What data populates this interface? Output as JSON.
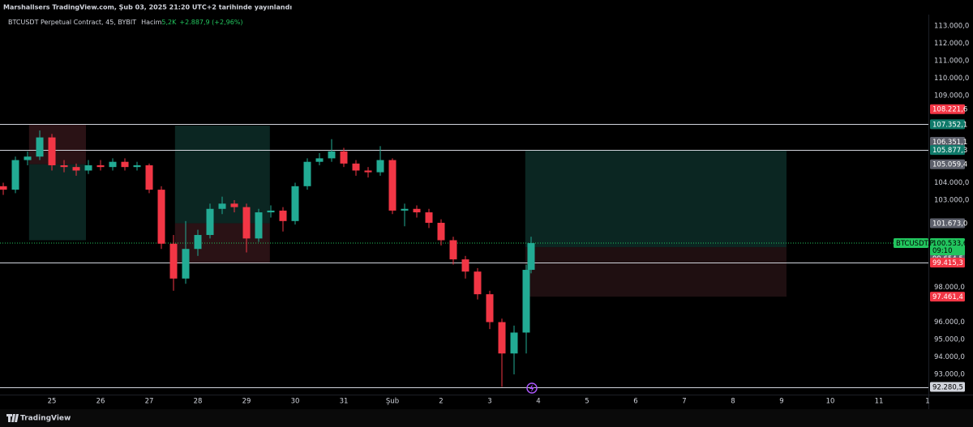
{
  "header": {
    "published": "Marshallsers TradingView.com, Şub 03, 2025 21:20 UTC+2 tarihinde yayınlandı",
    "symbol": "BTCUSDT Perpetual Contract, 45, BYBIT",
    "volume_label": "Hacim",
    "volume": "5,2K",
    "change": "+2.887,9 (+2,96%)"
  },
  "footer": {
    "brand": "TradingView"
  },
  "chart_data": {
    "type": "candlestick",
    "up_color": "#22ab94",
    "down_color": "#f23645",
    "xlim": [
      23.933,
      43.017
    ],
    "ylim": [
      91840,
      113650
    ],
    "xticks": [
      {
        "value": 25,
        "label": "25"
      },
      {
        "value": 26,
        "label": "26"
      },
      {
        "value": 27,
        "label": "27"
      },
      {
        "value": 28,
        "label": "28"
      },
      {
        "value": 29,
        "label": "29"
      },
      {
        "value": 30,
        "label": "30"
      },
      {
        "value": 31,
        "label": "31"
      },
      {
        "value": 32,
        "label": "Şub"
      },
      {
        "value": 33,
        "label": "2"
      },
      {
        "value": 34,
        "label": "3"
      },
      {
        "value": 35,
        "label": "4"
      },
      {
        "value": 36,
        "label": "5"
      },
      {
        "value": 37,
        "label": "6"
      },
      {
        "value": 38,
        "label": "7"
      },
      {
        "value": 39,
        "label": "8"
      },
      {
        "value": 40,
        "label": "9"
      },
      {
        "value": 41,
        "label": "10"
      },
      {
        "value": 42,
        "label": "11"
      },
      {
        "value": 43,
        "label": "1"
      }
    ],
    "yticks": [
      {
        "value": 113000,
        "label": "113.000,0"
      },
      {
        "value": 112000,
        "label": "112.000,0"
      },
      {
        "value": 111000,
        "label": "111.000,0"
      },
      {
        "value": 110000,
        "label": "110.000,0"
      },
      {
        "value": 109000,
        "label": "109.000,0"
      },
      {
        "value": 104000,
        "label": "104.000,0"
      },
      {
        "value": 103000,
        "label": "103.000,0"
      },
      {
        "value": 98000,
        "label": "98.000,0"
      },
      {
        "value": 96000,
        "label": "96.000,0"
      },
      {
        "value": 95000,
        "label": "95.000,0"
      },
      {
        "value": 94000,
        "label": "94.000,0"
      },
      {
        "value": 93000,
        "label": "93.000,0"
      }
    ],
    "x": [
      24,
      24.25,
      24.5,
      24.75,
      25,
      25.25,
      25.5,
      25.75,
      26,
      26.25,
      26.5,
      26.75,
      27,
      27.25,
      27.5,
      27.75,
      28,
      28.25,
      28.5,
      28.75,
      29,
      29.25,
      29.5,
      29.75,
      30,
      30.25,
      30.5,
      30.75,
      31,
      31.25,
      31.5,
      31.75,
      32,
      32.25,
      32.5,
      32.75,
      33,
      33.25,
      33.5,
      33.75,
      34,
      34.25,
      34.5,
      34.75,
      34.85
    ],
    "open": [
      103800,
      103600,
      105300,
      105500,
      106600,
      105000,
      104900,
      104700,
      105000,
      104900,
      105200,
      104900,
      105000,
      103600,
      100500,
      98500,
      100200,
      101000,
      102500,
      102800,
      102600,
      100800,
      102300,
      102400,
      101800,
      103800,
      105200,
      105400,
      105800,
      105100,
      104700,
      104600,
      105300,
      102400,
      102500,
      102300,
      101700,
      100700,
      99600,
      98900,
      97600,
      96000,
      94200,
      95400,
      99000
    ],
    "high": [
      104000,
      105500,
      105800,
      107000,
      106800,
      105300,
      105100,
      105300,
      105300,
      105400,
      105400,
      105200,
      105100,
      103800,
      101000,
      101800,
      101300,
      102800,
      103200,
      103000,
      102800,
      102500,
      102700,
      102600,
      104000,
      105400,
      105700,
      106500,
      106000,
      105300,
      104900,
      106100,
      105400,
      102800,
      102700,
      102500,
      101900,
      100900,
      99800,
      99100,
      97800,
      96200,
      95800,
      99300,
      100900
    ],
    "low": [
      103300,
      103400,
      105000,
      105300,
      104700,
      104600,
      104400,
      104500,
      104700,
      104700,
      104700,
      104700,
      103400,
      100200,
      97800,
      98200,
      99800,
      100800,
      102200,
      102300,
      100000,
      100600,
      102000,
      101200,
      101600,
      103600,
      105000,
      105200,
      104900,
      104400,
      104300,
      104400,
      102200,
      101500,
      102000,
      101400,
      100400,
      99300,
      98500,
      97300,
      95600,
      92280.5,
      93000,
      94200,
      98800
    ],
    "close": [
      103600,
      105300,
      105500,
      106600,
      105000,
      104900,
      104700,
      105000,
      104900,
      105200,
      104900,
      105000,
      103600,
      100500,
      98500,
      100200,
      101000,
      102500,
      102800,
      102600,
      100800,
      102300,
      102400,
      101800,
      103800,
      105200,
      105400,
      105800,
      105100,
      104700,
      104600,
      105300,
      102400,
      102500,
      102300,
      101700,
      100700,
      99600,
      98900,
      97600,
      96000,
      94200,
      95400,
      99000,
      100534
    ],
    "zones": [
      {
        "x": [
          24.53,
          25.7
        ],
        "y": [
          107352.1,
          105059.4
        ],
        "color": "#2a1215"
      },
      {
        "x": [
          24.53,
          25.7
        ],
        "y": [
          105059.4,
          100700
        ],
        "color": "#0b2622"
      },
      {
        "x": [
          27.53,
          29.48
        ],
        "y": [
          107280,
          101673
        ],
        "color": "#0b2622"
      },
      {
        "x": [
          27.53,
          29.48
        ],
        "y": [
          101673,
          99372
        ],
        "color": "#2a1215"
      },
      {
        "x": [
          34.73,
          40.1
        ],
        "y": [
          105877.3,
          100302
        ],
        "color": "#0b2622"
      },
      {
        "x": [
          34.73,
          40.1
        ],
        "y": [
          100302,
          97461.4
        ],
        "color": "#1f0f11"
      }
    ],
    "hlines": [
      {
        "value": 107352.1,
        "color": "#d1d4dc"
      },
      {
        "value": 105877.3,
        "color": "#d1d4dc"
      },
      {
        "value": 99415.3,
        "color": "#d1d4dc"
      },
      {
        "value": 92280.5,
        "color": "#d1d4dc"
      }
    ],
    "price_labels": [
      {
        "value": 108221.6,
        "label": "108.221,6",
        "color": "#f23645"
      },
      {
        "value": 107352.1,
        "label": "107.352,1",
        "color": "#0f7a6a"
      },
      {
        "value": 106351.1,
        "label": "106.351,1",
        "color": "#5d606b"
      },
      {
        "value": 105877.3,
        "label": "105.877,3",
        "color": "#0f7a6a"
      },
      {
        "value": 105059.4,
        "label": "105.059,4",
        "color": "#5d606b"
      },
      {
        "value": 101673,
        "label": "101.673,0",
        "color": "#5d606b"
      },
      {
        "value": 99654.5,
        "label": "99.654,5",
        "color": "#5d606b"
      },
      {
        "value": 99415.3,
        "label": "99.415,3",
        "color": "#f23645"
      },
      {
        "value": 97461.4,
        "label": "97.461,4",
        "color": "#f23645"
      },
      {
        "value": 92280.5,
        "label": "92.280,5",
        "color": "#d1d4dc"
      }
    ],
    "last_price": {
      "symbol": "BTCUSDT.P",
      "value": 100533.6,
      "label": "100.533,6",
      "countdown": "09:10",
      "color": "#22c55e"
    }
  }
}
